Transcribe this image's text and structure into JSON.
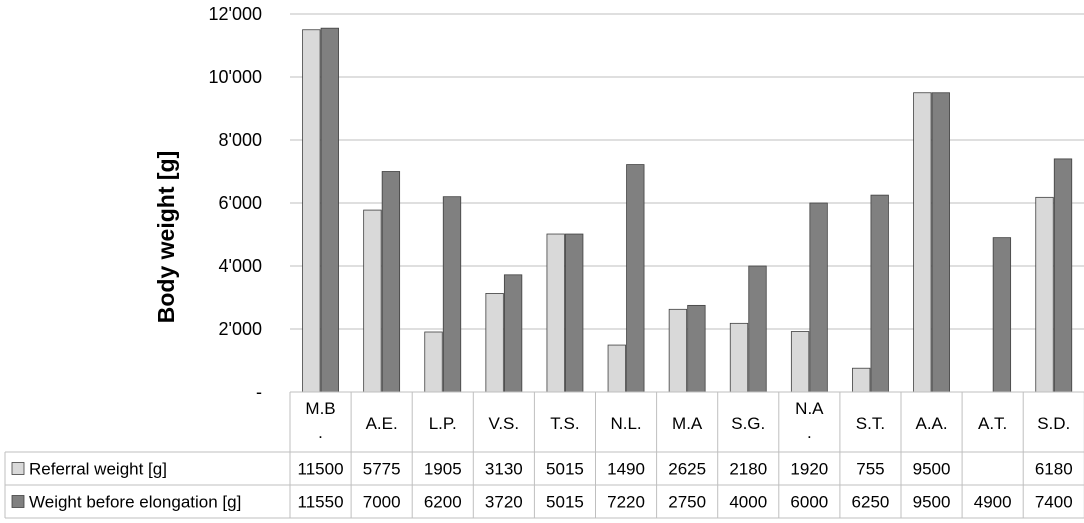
{
  "chart_data": {
    "type": "bar",
    "title": "",
    "xlabel": "",
    "ylabel": "Body weight [g]",
    "ylim": [
      0,
      12000
    ],
    "yticks": [
      0,
      2000,
      4000,
      6000,
      8000,
      10000,
      12000
    ],
    "ytick_labels": [
      "-",
      "2'000",
      "4'000",
      "6'000",
      "8'000",
      "10'000",
      "12'000"
    ],
    "grid": true,
    "legend": "data-table",
    "categories": [
      [
        "M.B",
        "."
      ],
      [
        "A.E."
      ],
      [
        "L.P."
      ],
      [
        "V.S."
      ],
      [
        "T.S."
      ],
      [
        "N.L."
      ],
      [
        "M.A"
      ],
      [
        "S.G."
      ],
      [
        "N.A",
        "."
      ],
      [
        "S.T."
      ],
      [
        "A.A."
      ],
      [
        "A.T."
      ],
      [
        "S.D."
      ]
    ],
    "series": [
      {
        "name": "Referral weight [g]",
        "color": "#d9d9d9",
        "values": [
          11500,
          5775,
          1905,
          3130,
          5015,
          1490,
          2625,
          2180,
          1920,
          755,
          9500,
          null,
          6180
        ],
        "labels": [
          "11500",
          "5775",
          "1905",
          "3130",
          "5015",
          "1490",
          "2625",
          "2180",
          "1920",
          "755",
          "9500",
          "",
          "6180"
        ]
      },
      {
        "name": "Weight before elongation [g]",
        "color": "#808080",
        "values": [
          11550,
          7000,
          6200,
          3720,
          5015,
          7220,
          2750,
          4000,
          6000,
          6250,
          9500,
          4900,
          7400
        ],
        "labels": [
          "11550",
          "7000",
          "6200",
          "3720",
          "5015",
          "7220",
          "2750",
          "4000",
          "6000",
          "6250",
          "9500",
          "4900",
          "7400"
        ]
      }
    ]
  }
}
